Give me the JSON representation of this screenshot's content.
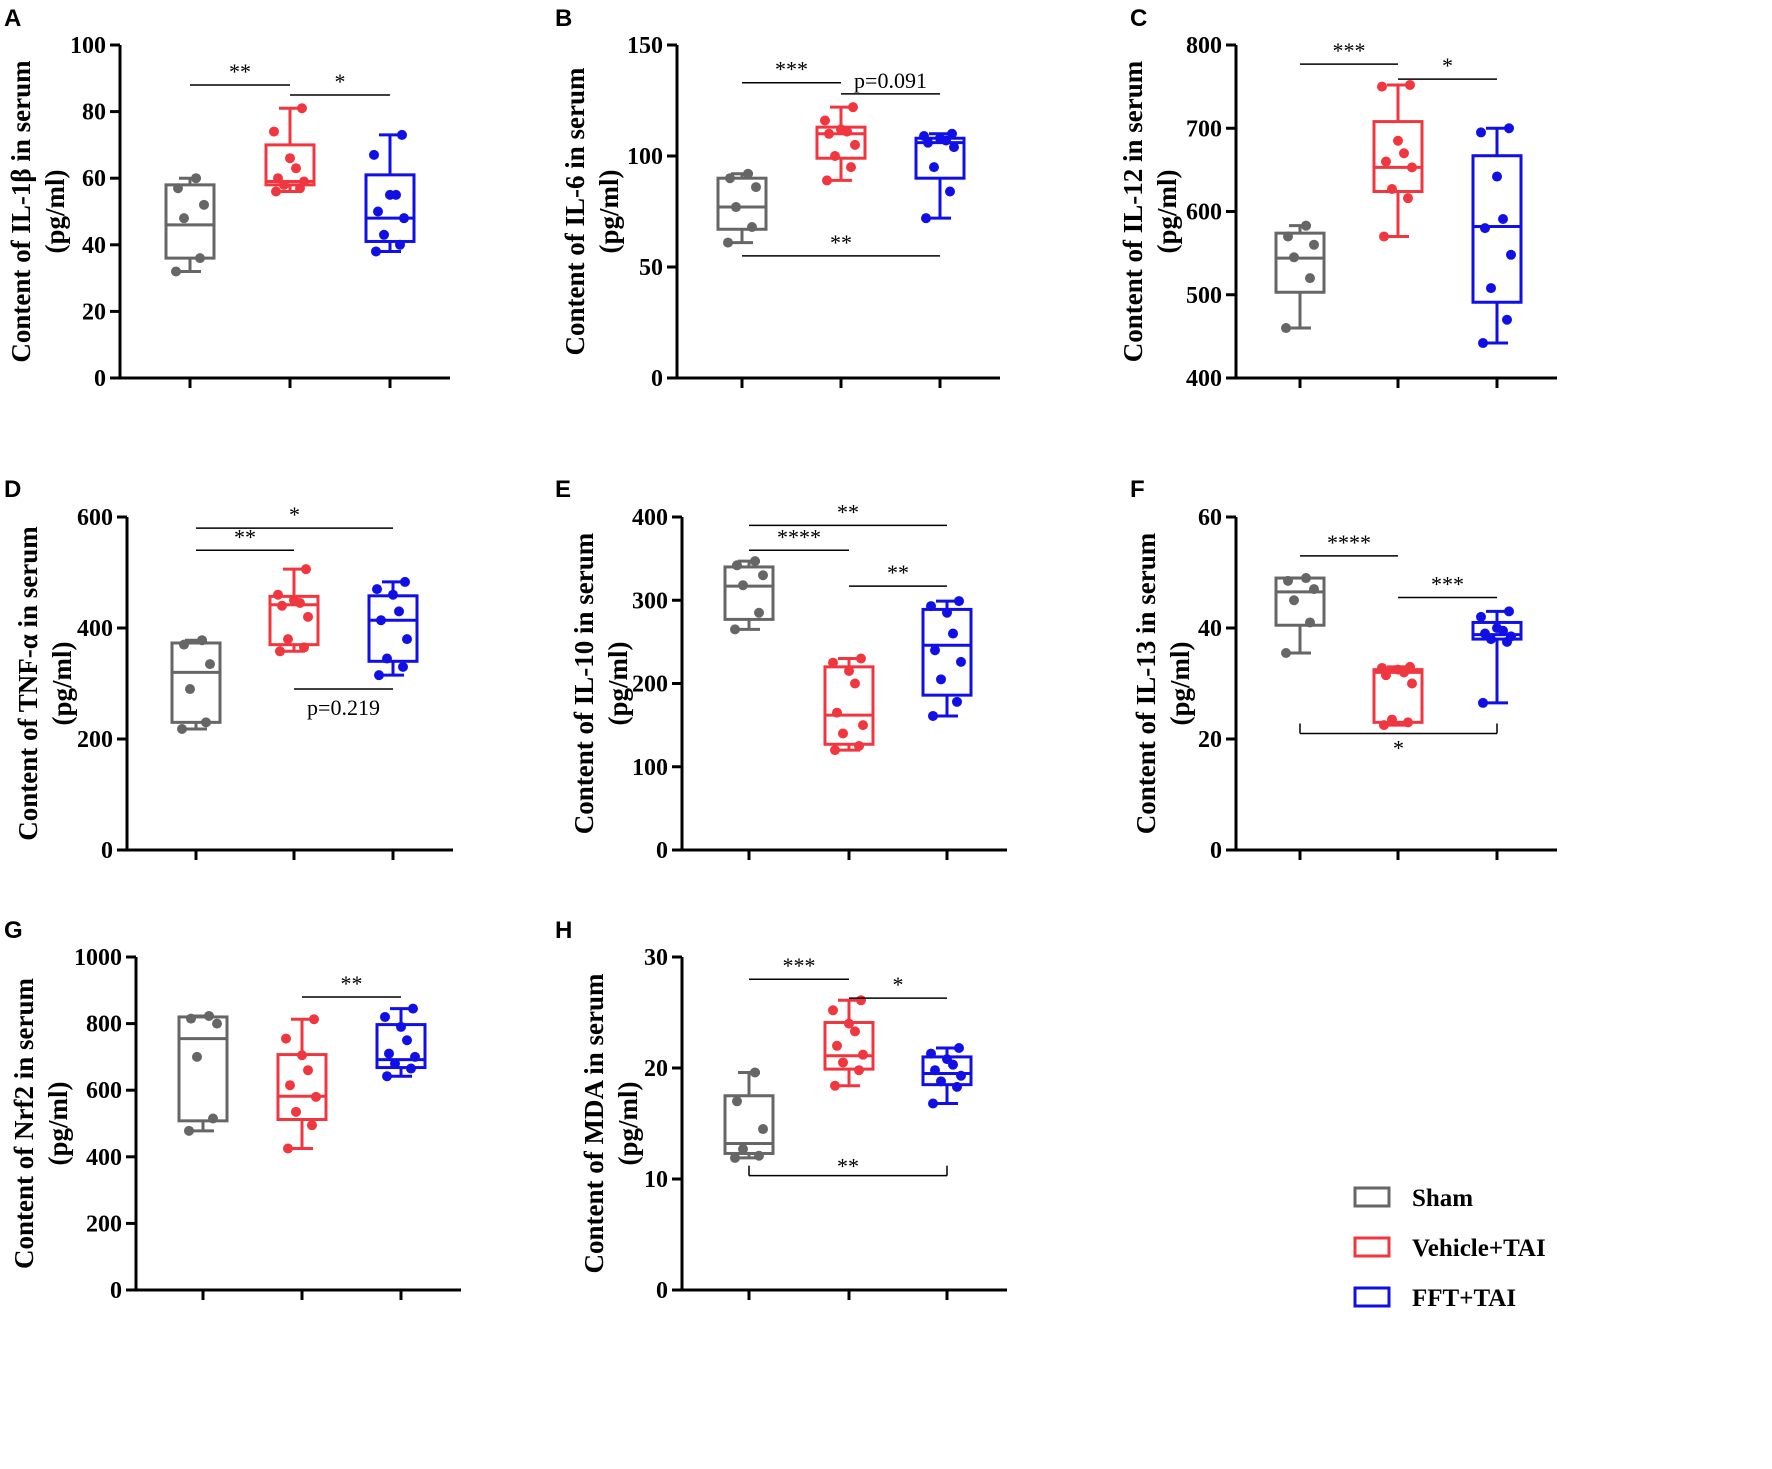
{
  "legend": [
    {
      "label": "Sham",
      "color": "#666666"
    },
    {
      "label": "Vehicle+TAI",
      "color": "#f0363e"
    },
    {
      "label": "FFT+TAI",
      "color": "#1010e6"
    }
  ],
  "chart_data": [
    {
      "type": "box",
      "letter": "A",
      "ylabel_lines": [
        "Content of IL-1β  in serum",
        "(pg/ml)"
      ],
      "ylim": [
        0,
        100
      ],
      "ticks": [
        0,
        20,
        40,
        60,
        80,
        100
      ],
      "groups": [
        {
          "name": "Sham",
          "min": 32,
          "q1": 36,
          "median": 46,
          "q3": 58,
          "max": 60,
          "points": [
            32,
            36,
            48,
            52,
            57,
            60
          ]
        },
        {
          "name": "Vehicle+TAI",
          "min": 56,
          "q1": 58,
          "median": 59,
          "q3": 70,
          "max": 81,
          "points": [
            56,
            57,
            58,
            59,
            60,
            63,
            66,
            74,
            81
          ]
        },
        {
          "name": "FFT+TAI",
          "min": 38,
          "q1": 41,
          "median": 48,
          "q3": 61,
          "max": 73,
          "points": [
            38,
            40,
            43,
            48,
            50,
            55,
            55,
            67,
            73
          ]
        }
      ],
      "comparisons": [
        {
          "from": 0,
          "to": 1,
          "label": "**",
          "y": 88,
          "style": "line"
        },
        {
          "from": 1,
          "to": 2,
          "label": "*",
          "y": 85,
          "style": "line"
        }
      ]
    },
    {
      "type": "box",
      "letter": "B",
      "ylabel_lines": [
        "Content of IL-6  in serum",
        "(pg/ml)"
      ],
      "ylim": [
        0,
        150
      ],
      "ticks": [
        0,
        50,
        100,
        150
      ],
      "groups": [
        {
          "name": "Sham",
          "min": 61,
          "q1": 67,
          "median": 77,
          "q3": 90,
          "max": 92,
          "points": [
            61,
            68,
            77,
            86,
            90,
            92
          ]
        },
        {
          "name": "Vehicle+TAI",
          "min": 89,
          "q1": 99,
          "median": 110,
          "q3": 113,
          "max": 122,
          "points": [
            89,
            95,
            100,
            105,
            110,
            111,
            112,
            116,
            122
          ]
        },
        {
          "name": "FFT+TAI",
          "min": 72,
          "q1": 90,
          "median": 106,
          "q3": 108,
          "max": 110,
          "points": [
            72,
            84,
            95,
            104,
            106,
            107,
            108,
            109,
            110
          ]
        }
      ],
      "comparisons": [
        {
          "from": 0,
          "to": 1,
          "label": "***",
          "y": 133,
          "style": "line"
        },
        {
          "from": 1,
          "to": 2,
          "label": "p=0.091",
          "y": 128,
          "style": "line"
        },
        {
          "from": 0,
          "to": 2,
          "label": "**",
          "y": 55,
          "style": "line"
        }
      ]
    },
    {
      "type": "box",
      "letter": "C",
      "ylabel_lines": [
        "Content of IL-12  in serum",
        "(pg/ml)"
      ],
      "ylim": [
        400,
        800
      ],
      "ticks": [
        400,
        500,
        600,
        700,
        800
      ],
      "groups": [
        {
          "name": "Sham",
          "min": 460,
          "q1": 503,
          "median": 544,
          "q3": 574,
          "max": 583,
          "points": [
            460,
            520,
            545,
            560,
            570,
            583
          ]
        },
        {
          "name": "Vehicle+TAI",
          "min": 570,
          "q1": 624,
          "median": 653,
          "q3": 708,
          "max": 752,
          "points": [
            570,
            616,
            627,
            653,
            660,
            670,
            685,
            750,
            752
          ]
        },
        {
          "name": "FFT+TAI",
          "min": 442,
          "q1": 491,
          "median": 582,
          "q3": 667,
          "max": 700,
          "points": [
            442,
            470,
            508,
            548,
            580,
            591,
            642,
            695,
            700
          ]
        }
      ],
      "comparisons": [
        {
          "from": 0,
          "to": 1,
          "label": "***",
          "y": 777,
          "style": "line"
        },
        {
          "from": 1,
          "to": 2,
          "label": "*",
          "y": 759,
          "style": "line"
        }
      ]
    },
    {
      "type": "box",
      "letter": "D",
      "ylabel_lines": [
        "Content of TNF-α  in serum",
        "(pg/ml)"
      ],
      "ylim": [
        0,
        600
      ],
      "ticks": [
        0,
        200,
        400,
        600
      ],
      "groups": [
        {
          "name": "Sham",
          "min": 218,
          "q1": 230,
          "median": 320,
          "q3": 373,
          "max": 378,
          "points": [
            218,
            230,
            290,
            335,
            370,
            378
          ]
        },
        {
          "name": "Vehicle+TAI",
          "min": 358,
          "q1": 370,
          "median": 442,
          "q3": 457,
          "max": 506,
          "points": [
            358,
            365,
            380,
            420,
            440,
            445,
            450,
            460,
            506
          ]
        },
        {
          "name": "FFT+TAI",
          "min": 315,
          "q1": 340,
          "median": 414,
          "q3": 458,
          "max": 483,
          "points": [
            315,
            330,
            345,
            380,
            414,
            430,
            460,
            470,
            483
          ]
        }
      ],
      "comparisons": [
        {
          "from": 0,
          "to": 2,
          "label": "*",
          "y": 580,
          "style": "line"
        },
        {
          "from": 0,
          "to": 1,
          "label": "**",
          "y": 540,
          "style": "line"
        },
        {
          "from": 1,
          "to": 2,
          "label": "p=0.219",
          "y": 290,
          "style": "line_below"
        }
      ]
    },
    {
      "type": "box",
      "letter": "E",
      "ylabel_lines": [
        "Content of IL-10  in serum",
        "(pg/ml)"
      ],
      "ylim": [
        0,
        400
      ],
      "ticks": [
        0,
        100,
        200,
        300,
        400
      ],
      "groups": [
        {
          "name": "Sham",
          "min": 265,
          "q1": 277,
          "median": 317,
          "q3": 340,
          "max": 347,
          "points": [
            265,
            285,
            318,
            330,
            342,
            347
          ]
        },
        {
          "name": "Vehicle+TAI",
          "min": 120,
          "q1": 127,
          "median": 162,
          "q3": 220,
          "max": 230,
          "points": [
            120,
            125,
            140,
            150,
            165,
            200,
            215,
            225,
            230
          ]
        },
        {
          "name": "FFT+TAI",
          "min": 161,
          "q1": 186,
          "median": 246,
          "q3": 289,
          "max": 299,
          "points": [
            161,
            178,
            205,
            226,
            240,
            260,
            285,
            293,
            299
          ]
        }
      ],
      "comparisons": [
        {
          "from": 0,
          "to": 2,
          "label": "**",
          "y": 390,
          "style": "line"
        },
        {
          "from": 0,
          "to": 1,
          "label": "****",
          "y": 360,
          "style": "line"
        },
        {
          "from": 1,
          "to": 2,
          "label": "**",
          "y": 317,
          "style": "line"
        }
      ]
    },
    {
      "type": "box",
      "letter": "F",
      "ylabel_lines": [
        "Content of IL-13  in serum",
        "(pg/ml)"
      ],
      "ylim": [
        0,
        60
      ],
      "ticks": [
        0,
        20,
        40,
        60
      ],
      "groups": [
        {
          "name": "Sham",
          "min": 35.5,
          "q1": 40.5,
          "median": 46.5,
          "q3": 49,
          "max": 49,
          "points": [
            35.5,
            41,
            45,
            47,
            48.5,
            49
          ]
        },
        {
          "name": "Vehicle+TAI",
          "min": 22.5,
          "q1": 23,
          "median": 32,
          "q3": 32.5,
          "max": 33,
          "points": [
            22.5,
            23,
            23.5,
            30,
            31.5,
            32,
            32.5,
            32.8,
            33
          ]
        },
        {
          "name": "FFT+TAI",
          "min": 26.5,
          "q1": 38,
          "median": 38.8,
          "q3": 41,
          "max": 43,
          "points": [
            26.5,
            37.5,
            38,
            38.5,
            39,
            39.5,
            40,
            42,
            43
          ]
        }
      ],
      "comparisons": [
        {
          "from": 0,
          "to": 1,
          "label": "****",
          "y": 53,
          "style": "line"
        },
        {
          "from": 1,
          "to": 2,
          "label": "***",
          "y": 45.5,
          "style": "line"
        },
        {
          "from": 0,
          "to": 2,
          "label": "*",
          "y": 21,
          "style": "bracket_down"
        }
      ]
    },
    {
      "type": "box",
      "letter": "G",
      "ylabel_lines": [
        "Content of Nrf2  in serum",
        "(pg/ml)"
      ],
      "ylim": [
        0,
        1000
      ],
      "ticks": [
        0,
        200,
        400,
        600,
        800,
        1000
      ],
      "groups": [
        {
          "name": "Sham",
          "min": 478,
          "q1": 508,
          "median": 755,
          "q3": 820,
          "max": 823,
          "points": [
            478,
            515,
            700,
            800,
            815,
            823
          ]
        },
        {
          "name": "Vehicle+TAI",
          "min": 425,
          "q1": 512,
          "median": 582,
          "q3": 707,
          "max": 813,
          "points": [
            425,
            495,
            535,
            580,
            615,
            660,
            705,
            755,
            813
          ]
        },
        {
          "name": "FFT+TAI",
          "min": 642,
          "q1": 668,
          "median": 692,
          "q3": 797,
          "max": 845,
          "points": [
            642,
            665,
            680,
            700,
            710,
            750,
            790,
            820,
            845
          ]
        }
      ],
      "comparisons": [
        {
          "from": 1,
          "to": 2,
          "label": "**",
          "y": 880,
          "style": "line"
        }
      ]
    },
    {
      "type": "box",
      "letter": "H",
      "ylabel_lines": [
        "Content of MDA  in serum",
        "(pg/ml)"
      ],
      "ylim": [
        0,
        30
      ],
      "ticks": [
        0,
        10,
        20,
        30
      ],
      "groups": [
        {
          "name": "Sham",
          "min": 11.9,
          "q1": 12.3,
          "median": 13.2,
          "q3": 17.5,
          "max": 19.6,
          "points": [
            11.9,
            12.1,
            12.7,
            14.5,
            17,
            19.6
          ]
        },
        {
          "name": "Vehicle+TAI",
          "min": 18.4,
          "q1": 19.9,
          "median": 21.1,
          "q3": 24.1,
          "max": 26.1,
          "points": [
            18.4,
            19.8,
            20.5,
            21.2,
            22,
            23.3,
            24,
            25.2,
            26.1
          ]
        },
        {
          "name": "FFT+TAI",
          "min": 16.8,
          "q1": 18.5,
          "median": 19.5,
          "q3": 21,
          "max": 21.8,
          "points": [
            16.8,
            18.3,
            18.8,
            19.3,
            19.8,
            20.3,
            20.8,
            21.3,
            21.8
          ]
        }
      ],
      "comparisons": [
        {
          "from": 0,
          "to": 1,
          "label": "***",
          "y": 28,
          "style": "line"
        },
        {
          "from": 1,
          "to": 2,
          "label": "*",
          "y": 26.3,
          "style": "line"
        },
        {
          "from": 0,
          "to": 2,
          "label": "**",
          "y": 10.3,
          "style": "bracket_up"
        }
      ]
    }
  ]
}
